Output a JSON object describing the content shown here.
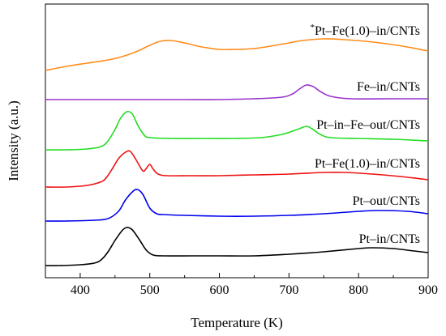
{
  "chart_data": {
    "type": "line",
    "xlabel": "Temperature (K)",
    "ylabel": "Intensity (a.u.)",
    "xlim": [
      350,
      900
    ],
    "x_ticks": [
      400,
      500,
      600,
      700,
      800,
      900
    ],
    "y_ticks": "none",
    "grid": false,
    "legend": "inline labels above each curve",
    "series": [
      {
        "name": "Pt–in/CNTs",
        "label_prefix": "",
        "color": "#000000",
        "points": [
          [
            350,
            328
          ],
          [
            370,
            328
          ],
          [
            400,
            327
          ],
          [
            420,
            325
          ],
          [
            430,
            321
          ],
          [
            440,
            311
          ],
          [
            450,
            297
          ],
          [
            460,
            285
          ],
          [
            467,
            281
          ],
          [
            475,
            284
          ],
          [
            485,
            296
          ],
          [
            495,
            309
          ],
          [
            505,
            315
          ],
          [
            520,
            316
          ],
          [
            560,
            316
          ],
          [
            600,
            316
          ],
          [
            650,
            316
          ],
          [
            700,
            314
          ],
          [
            750,
            311
          ],
          [
            800,
            307
          ],
          [
            820,
            306
          ],
          [
            850,
            307
          ],
          [
            880,
            310
          ],
          [
            900,
            312
          ]
        ]
      },
      {
        "name": "Pt–out/CNTs",
        "label_prefix": "",
        "color": "#0000ee",
        "points": [
          [
            350,
            273
          ],
          [
            380,
            273
          ],
          [
            420,
            272
          ],
          [
            440,
            270
          ],
          [
            455,
            261
          ],
          [
            465,
            247
          ],
          [
            475,
            237
          ],
          [
            482,
            234
          ],
          [
            490,
            240
          ],
          [
            500,
            257
          ],
          [
            510,
            264
          ],
          [
            520,
            265
          ],
          [
            550,
            266
          ],
          [
            600,
            267
          ],
          [
            650,
            267
          ],
          [
            700,
            266
          ],
          [
            750,
            264
          ],
          [
            800,
            261
          ],
          [
            830,
            260
          ],
          [
            870,
            261
          ],
          [
            900,
            264
          ]
        ]
      },
      {
        "name": "Pt–Fe(1.0)–in/CNTs",
        "label_prefix": "",
        "color": "#ee1111",
        "points": [
          [
            350,
            231
          ],
          [
            380,
            231
          ],
          [
            410,
            229
          ],
          [
            425,
            226
          ],
          [
            435,
            222
          ],
          [
            445,
            210
          ],
          [
            455,
            196
          ],
          [
            465,
            188
          ],
          [
            472,
            187
          ],
          [
            480,
            197
          ],
          [
            490,
            211
          ],
          [
            495,
            208
          ],
          [
            500,
            203
          ],
          [
            505,
            209
          ],
          [
            512,
            215
          ],
          [
            525,
            217
          ],
          [
            560,
            217
          ],
          [
            600,
            217
          ],
          [
            650,
            216
          ],
          [
            700,
            215
          ],
          [
            750,
            213
          ],
          [
            780,
            213
          ],
          [
            820,
            215
          ],
          [
            860,
            218
          ],
          [
            900,
            222
          ]
        ]
      },
      {
        "name": "Pt–in–Fe–out/CNTs",
        "label_prefix": "",
        "color": "#22dd22",
        "points": [
          [
            350,
            185
          ],
          [
            380,
            185
          ],
          [
            410,
            184
          ],
          [
            430,
            181
          ],
          [
            440,
            174
          ],
          [
            450,
            160
          ],
          [
            458,
            146
          ],
          [
            467,
            138
          ],
          [
            475,
            141
          ],
          [
            483,
            155
          ],
          [
            492,
            167
          ],
          [
            500,
            170
          ],
          [
            530,
            171
          ],
          [
            580,
            171
          ],
          [
            620,
            171
          ],
          [
            660,
            170
          ],
          [
            690,
            166
          ],
          [
            705,
            162
          ],
          [
            715,
            159
          ],
          [
            725,
            156
          ],
          [
            733,
            159
          ],
          [
            745,
            166
          ],
          [
            760,
            170
          ],
          [
            800,
            171
          ],
          [
            850,
            172
          ],
          [
            900,
            174
          ]
        ]
      },
      {
        "name": "Fe–in/CNTs",
        "label_prefix": "",
        "color": "#9933cc",
        "points": [
          [
            350,
            123
          ],
          [
            400,
            123
          ],
          [
            450,
            123
          ],
          [
            500,
            123
          ],
          [
            550,
            123
          ],
          [
            600,
            123
          ],
          [
            650,
            122
          ],
          [
            690,
            120
          ],
          [
            705,
            116
          ],
          [
            715,
            110
          ],
          [
            725,
            105
          ],
          [
            735,
            107
          ],
          [
            745,
            113
          ],
          [
            760,
            119
          ],
          [
            790,
            122
          ],
          [
            850,
            122
          ],
          [
            900,
            122
          ]
        ]
      },
      {
        "name": "Pt–Fe(1.0)–in/CNTs",
        "label_prefix": "*",
        "color": "#ff8c1a",
        "points": [
          [
            350,
            87
          ],
          [
            380,
            82
          ],
          [
            410,
            78
          ],
          [
            440,
            74
          ],
          [
            460,
            70
          ],
          [
            480,
            64
          ],
          [
            500,
            56
          ],
          [
            515,
            51
          ],
          [
            530,
            50
          ],
          [
            550,
            53
          ],
          [
            575,
            58
          ],
          [
            600,
            61
          ],
          [
            625,
            61
          ],
          [
            650,
            60
          ],
          [
            680,
            56
          ],
          [
            700,
            53
          ],
          [
            720,
            50
          ],
          [
            750,
            48
          ],
          [
            780,
            49
          ],
          [
            810,
            51
          ],
          [
            840,
            54
          ],
          [
            870,
            58
          ],
          [
            900,
            63
          ]
        ]
      }
    ]
  }
}
